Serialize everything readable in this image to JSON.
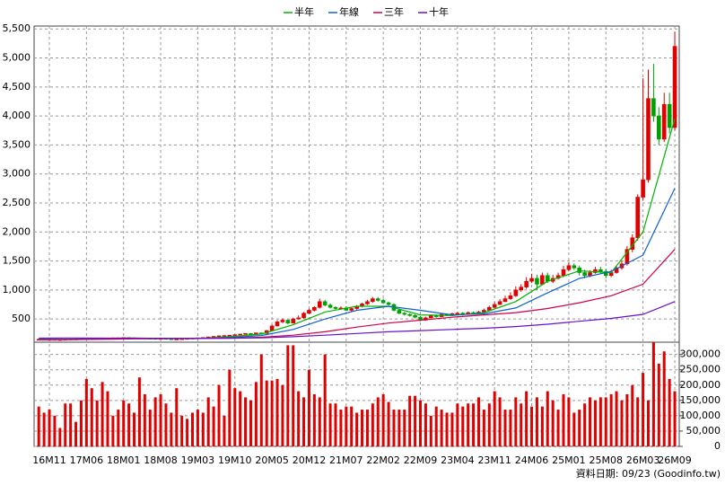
{
  "chart_data": {
    "type": "candlestick",
    "legend_position": "top",
    "grid": true,
    "up_color": "#e00000",
    "down_color": "#00a000",
    "source": "資料日期: 09/23 (Goodinfo.tw)",
    "categories": [
      null,
      null,
      "16M11",
      null,
      null,
      null,
      null,
      null,
      null,
      "17M06",
      null,
      null,
      null,
      null,
      null,
      null,
      "18M01",
      null,
      null,
      null,
      null,
      null,
      null,
      "18M08",
      null,
      null,
      null,
      null,
      null,
      null,
      "19M03",
      null,
      null,
      null,
      null,
      null,
      null,
      "19M10",
      null,
      null,
      null,
      null,
      null,
      null,
      "20M05",
      null,
      null,
      null,
      null,
      null,
      null,
      "20M12",
      null,
      null,
      null,
      null,
      null,
      null,
      "21M07",
      null,
      null,
      null,
      null,
      null,
      null,
      "22M02",
      null,
      null,
      null,
      null,
      null,
      null,
      "22M09",
      null,
      null,
      null,
      null,
      null,
      null,
      "23M04",
      null,
      null,
      null,
      null,
      null,
      null,
      "23M11",
      null,
      null,
      null,
      null,
      null,
      null,
      "24M06",
      null,
      null,
      null,
      null,
      null,
      null,
      "25M01",
      null,
      null,
      null,
      null,
      null,
      null,
      "25M08",
      null,
      null,
      null,
      null,
      null,
      null,
      "26M03",
      null,
      null,
      null,
      null,
      null,
      "26M09"
    ],
    "open": [
      145,
      150,
      145,
      148,
      140,
      145,
      150,
      155,
      150,
      158,
      165,
      170,
      165,
      160,
      168,
      175,
      170,
      180,
      175,
      170,
      172,
      168,
      165,
      160,
      165,
      158,
      150,
      155,
      160,
      165,
      170,
      175,
      180,
      190,
      200,
      210,
      215,
      220,
      230,
      240,
      250,
      245,
      260,
      250,
      300,
      380,
      450,
      480,
      430,
      500,
      520,
      600,
      650,
      700,
      800,
      740,
      700,
      680,
      690,
      650,
      680,
      720,
      760,
      800,
      850,
      820,
      780,
      750,
      650,
      600,
      580,
      560,
      530,
      480,
      520,
      560,
      540,
      580,
      560,
      590,
      600,
      580,
      610,
      600,
      620,
      650,
      700,
      750,
      800,
      850,
      900,
      1000,
      1050,
      1150,
      1200,
      1100,
      1250,
      1150,
      1200,
      1250,
      1350,
      1420,
      1380,
      1300,
      1250,
      1300,
      1350,
      1320,
      1250,
      1300,
      1380,
      1450,
      1700,
      1900,
      2600,
      2900,
      4300,
      4000,
      3600,
      4200,
      3800
    ],
    "high": [
      160,
      158,
      155,
      152,
      150,
      158,
      162,
      160,
      165,
      172,
      178,
      175,
      170,
      172,
      180,
      180,
      185,
      185,
      180,
      178,
      175,
      172,
      168,
      168,
      168,
      162,
      158,
      165,
      168,
      175,
      180,
      185,
      195,
      205,
      215,
      220,
      225,
      235,
      245,
      255,
      258,
      265,
      265,
      310,
      400,
      480,
      510,
      490,
      520,
      560,
      620,
      680,
      720,
      850,
      830,
      770,
      720,
      720,
      720,
      700,
      740,
      780,
      830,
      880,
      880,
      850,
      800,
      770,
      680,
      620,
      600,
      580,
      550,
      540,
      580,
      580,
      600,
      600,
      610,
      620,
      620,
      630,
      630,
      640,
      680,
      730,
      790,
      840,
      900,
      960,
      1060,
      1100,
      1220,
      1280,
      1260,
      1300,
      1300,
      1260,
      1300,
      1420,
      1480,
      1460,
      1420,
      1350,
      1340,
      1400,
      1400,
      1360,
      1350,
      1420,
      1500,
      1760,
      1960,
      2650,
      4650,
      4800,
      4900,
      4150,
      4400,
      4400,
      5450
    ],
    "low": [
      138,
      140,
      138,
      132,
      135,
      140,
      145,
      145,
      145,
      152,
      158,
      160,
      155,
      155,
      162,
      165,
      165,
      170,
      165,
      165,
      162,
      160,
      155,
      155,
      152,
      145,
      145,
      150,
      155,
      160,
      165,
      170,
      175,
      185,
      195,
      205,
      210,
      215,
      225,
      235,
      235,
      240,
      245,
      245,
      290,
      370,
      430,
      410,
      420,
      490,
      505,
      585,
      630,
      680,
      720,
      680,
      660,
      660,
      640,
      630,
      660,
      700,
      740,
      780,
      800,
      760,
      730,
      630,
      580,
      560,
      540,
      510,
      460,
      470,
      510,
      520,
      530,
      550,
      550,
      580,
      560,
      570,
      590,
      590,
      610,
      640,
      690,
      740,
      790,
      830,
      880,
      970,
      1020,
      1120,
      1000,
      1080,
      1120,
      1120,
      1180,
      1220,
      1320,
      1350,
      1250,
      1200,
      1220,
      1280,
      1280,
      1200,
      1220,
      1280,
      1350,
      1420,
      1650,
      1850,
      2550,
      2850,
      3900,
      3500,
      3550,
      3700,
      3750
    ],
    "close": [
      150,
      145,
      148,
      140,
      145,
      150,
      155,
      150,
      158,
      165,
      170,
      165,
      160,
      168,
      175,
      170,
      180,
      175,
      170,
      172,
      168,
      165,
      160,
      165,
      158,
      150,
      155,
      160,
      165,
      170,
      175,
      180,
      190,
      200,
      210,
      215,
      220,
      230,
      240,
      250,
      245,
      260,
      250,
      300,
      380,
      450,
      480,
      430,
      500,
      520,
      600,
      650,
      700,
      800,
      740,
      700,
      680,
      690,
      650,
      680,
      720,
      760,
      800,
      850,
      820,
      780,
      750,
      650,
      600,
      580,
      560,
      530,
      480,
      520,
      560,
      540,
      580,
      560,
      590,
      600,
      580,
      610,
      600,
      620,
      650,
      700,
      750,
      800,
      850,
      900,
      1000,
      1050,
      1150,
      1200,
      1100,
      1250,
      1150,
      1200,
      1250,
      1350,
      1420,
      1380,
      1300,
      1250,
      1300,
      1350,
      1320,
      1250,
      1300,
      1380,
      1450,
      1700,
      1900,
      2600,
      2900,
      4300,
      4000,
      3600,
      4200,
      3800,
      5200
    ],
    "ylim": [
      100,
      5550
    ],
    "yticks": [
      500,
      {
        "value": 1000,
        "label": "1,000"
      },
      {
        "value": 1500,
        "label": "1,500"
      },
      {
        "value": 2000,
        "label": "2,000"
      },
      {
        "value": 2500,
        "label": "2,500"
      },
      {
        "value": 3000,
        "label": "3,000"
      },
      {
        "value": 3500,
        "label": "3,500"
      },
      {
        "value": 4000,
        "label": "4,000"
      },
      {
        "value": 4500,
        "label": "4,500"
      },
      {
        "value": 5000,
        "label": "5,000"
      },
      {
        "value": 5500,
        "label": "5,500"
      }
    ],
    "series": [
      {
        "name": "半年",
        "color": "#00b400",
        "x": [
          0,
          6,
          12,
          18,
          24,
          30,
          36,
          42,
          48,
          54,
          60,
          66,
          72,
          78,
          84,
          90,
          96,
          102,
          108,
          114,
          120
        ],
        "values": [
          148,
          150,
          165,
          172,
          163,
          162,
          195,
          240,
          400,
          620,
          720,
          720,
          570,
          560,
          610,
          800,
          1150,
          1330,
          1300,
          2000,
          3950
        ]
      },
      {
        "name": "年線",
        "color": "#1060d0",
        "x": [
          0,
          6,
          12,
          18,
          24,
          30,
          36,
          42,
          48,
          54,
          60,
          66,
          72,
          78,
          84,
          90,
          96,
          102,
          108,
          114,
          120
        ],
        "values": [
          150,
          150,
          160,
          168,
          167,
          164,
          180,
          215,
          320,
          500,
          650,
          720,
          650,
          570,
          590,
          690,
          950,
          1200,
          1320,
          1600,
          2750
        ]
      },
      {
        "name": "三年",
        "color": "#d0004a",
        "x": [
          0,
          6,
          12,
          18,
          24,
          30,
          36,
          42,
          48,
          54,
          60,
          66,
          72,
          78,
          84,
          90,
          96,
          102,
          108,
          114,
          120
        ],
        "values": [
          140,
          145,
          150,
          157,
          162,
          165,
          170,
          185,
          220,
          280,
          360,
          430,
          480,
          530,
          570,
          610,
          680,
          780,
          900,
          1100,
          1700
        ]
      },
      {
        "name": "十年",
        "color": "#6a10c8",
        "x": [
          0,
          6,
          12,
          18,
          24,
          30,
          36,
          42,
          48,
          54,
          60,
          66,
          72,
          78,
          84,
          90,
          96,
          102,
          108,
          114,
          120
        ],
        "values": [
          170,
          172,
          170,
          168,
          165,
          165,
          168,
          175,
          195,
          220,
          250,
          280,
          300,
          320,
          340,
          370,
          410,
          460,
          510,
          580,
          800
        ]
      }
    ],
    "volume": {
      "color": "#e00000",
      "ylim": [
        0,
        340000
      ],
      "yticks": [
        0,
        {
          "value": 50000,
          "label": "50,000"
        },
        {
          "value": 100000,
          "label": "100,000"
        },
        {
          "value": 150000,
          "label": "150,000"
        },
        {
          "value": 200000,
          "label": "200,000"
        },
        {
          "value": 250000,
          "label": "250,000"
        },
        {
          "value": 300000,
          "label": "300,000"
        }
      ],
      "values": [
        130000,
        110000,
        120000,
        100000,
        60000,
        140000,
        140000,
        80000,
        150000,
        220000,
        190000,
        150000,
        210000,
        180000,
        100000,
        120000,
        150000,
        140000,
        110000,
        225000,
        170000,
        120000,
        160000,
        170000,
        140000,
        110000,
        190000,
        100000,
        90000,
        110000,
        120000,
        110000,
        160000,
        130000,
        200000,
        100000,
        250000,
        190000,
        180000,
        160000,
        150000,
        210000,
        300000,
        215000,
        215000,
        220000,
        200000,
        330000,
        330000,
        180000,
        160000,
        250000,
        170000,
        160000,
        300000,
        140000,
        140000,
        120000,
        130000,
        130000,
        110000,
        120000,
        120000,
        140000,
        160000,
        170000,
        145000,
        120000,
        120000,
        120000,
        165000,
        165000,
        150000,
        140000,
        100000,
        130000,
        120000,
        110000,
        110000,
        140000,
        130000,
        140000,
        140000,
        160000,
        120000,
        140000,
        180000,
        160000,
        120000,
        120000,
        160000,
        140000,
        180000,
        130000,
        160000,
        130000,
        180000,
        150000,
        120000,
        170000,
        160000,
        110000,
        120000,
        140000,
        160000,
        150000,
        160000,
        160000,
        170000,
        180000,
        150000,
        170000,
        200000,
        160000,
        240000,
        150000,
        340000,
        270000,
        310000,
        220000,
        180000
      ]
    }
  }
}
